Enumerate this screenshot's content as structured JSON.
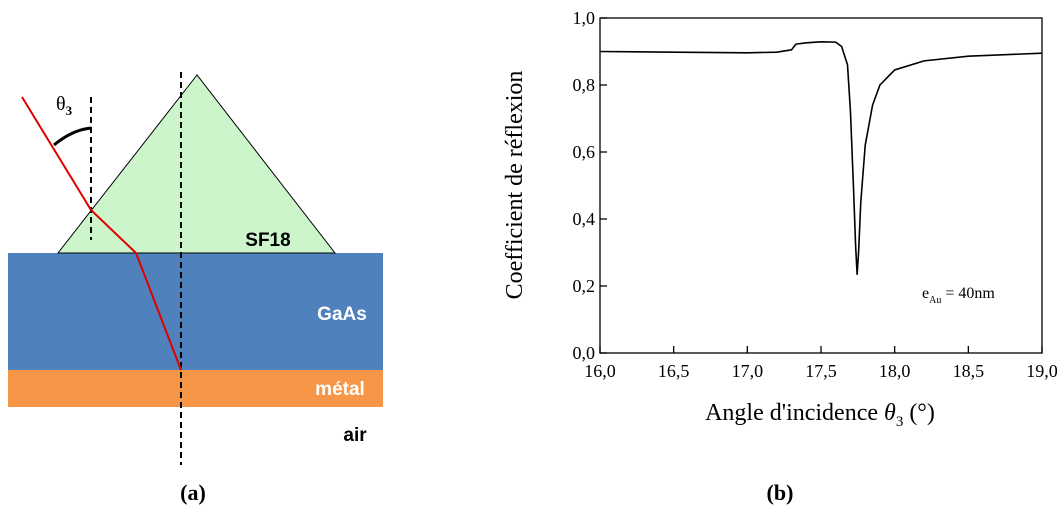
{
  "diagram": {
    "prism_label": "SF18",
    "layer_gaas": "GaAs",
    "layer_metal": "métal",
    "layer_air": "air",
    "angle_label": {
      "symbol": "θ",
      "subscript": "3"
    },
    "caption": "(a)"
  },
  "chart_data": {
    "type": "line",
    "caption": "(b)",
    "ylabel": "Coefficient de réflexion",
    "xlabel": {
      "text": "Angle d'incidence",
      "symbol": "θ",
      "subscript": "3",
      "unit": "(°)"
    },
    "annotation": {
      "text": "e",
      "subscript": "Au",
      "rest": "= 40nm"
    },
    "color": "#000000",
    "x": [
      16.0,
      16.5,
      17.0,
      17.2,
      17.3,
      17.33,
      17.4,
      17.5,
      17.6,
      17.64,
      17.68,
      17.7,
      17.72,
      17.735,
      17.745,
      17.755,
      17.77,
      17.8,
      17.85,
      17.9,
      18.0,
      18.2,
      18.5,
      19.0
    ],
    "values": [
      0.9,
      0.898,
      0.896,
      0.898,
      0.905,
      0.922,
      0.926,
      0.929,
      0.928,
      0.915,
      0.86,
      0.72,
      0.5,
      0.32,
      0.235,
      0.3,
      0.45,
      0.62,
      0.74,
      0.8,
      0.845,
      0.872,
      0.886,
      0.895
    ],
    "xlim": [
      16,
      19
    ],
    "ylim": [
      0,
      1
    ],
    "xticks": [
      {
        "value": 16,
        "label": "16,0"
      },
      {
        "value": 16.5,
        "label": "16,5"
      },
      {
        "value": 17,
        "label": "17,0"
      },
      {
        "value": 17.5,
        "label": "17,5"
      },
      {
        "value": 18,
        "label": "18,0"
      },
      {
        "value": 18.5,
        "label": "18,5"
      },
      {
        "value": 19,
        "label": "19,0"
      }
    ],
    "yticks": [
      {
        "value": 0,
        "label": "0,0"
      },
      {
        "value": 0.2,
        "label": "0,2"
      },
      {
        "value": 0.4,
        "label": "0,4"
      },
      {
        "value": 0.6,
        "label": "0,6"
      },
      {
        "value": 0.8,
        "label": "0,8"
      },
      {
        "value": 1,
        "label": "1,0"
      }
    ]
  }
}
